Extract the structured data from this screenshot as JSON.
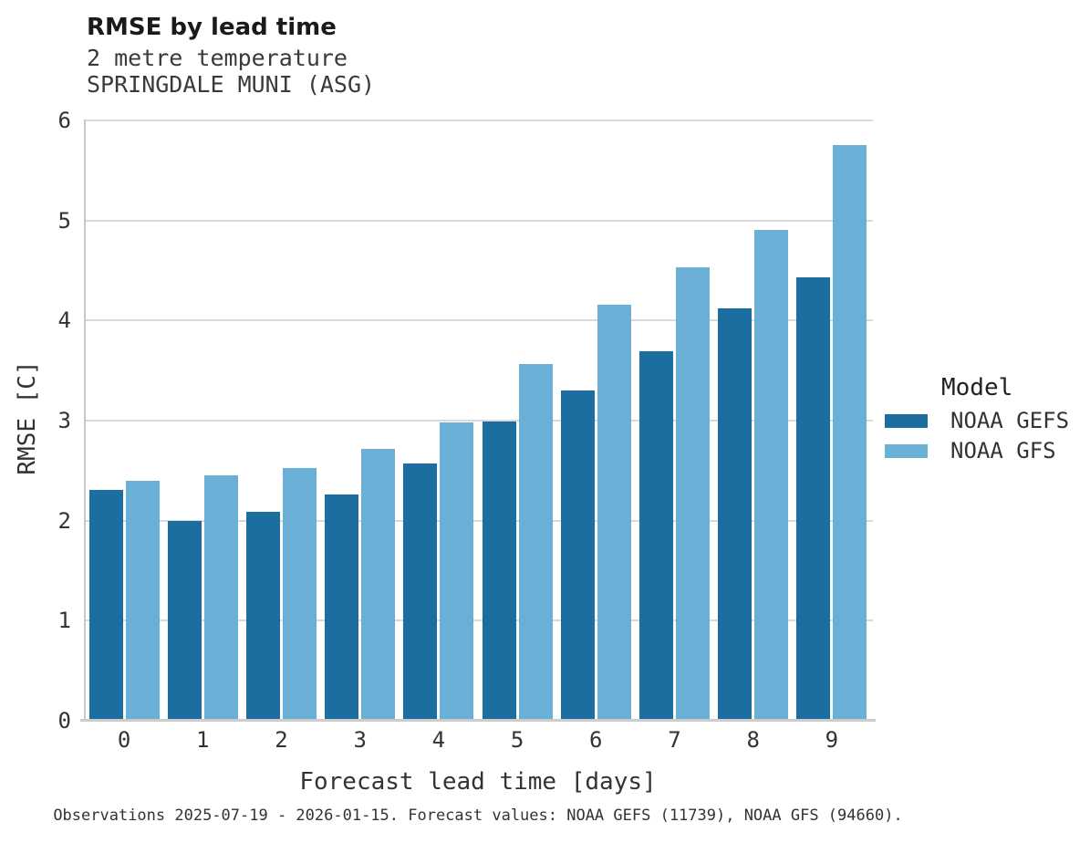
{
  "header": {
    "title": "RMSE by lead time",
    "subtitle_variable": "2 metre temperature",
    "subtitle_station": "SPRINGDALE MUNI (ASG)"
  },
  "legend": {
    "title": "Model"
  },
  "footer": {
    "caption": "Observations 2025-07-19 - 2026-01-15. Forecast values: NOAA GEFS (11739), NOAA GFS (94660)."
  },
  "chart_data": {
    "type": "bar",
    "title": "RMSE by lead time",
    "subtitle": [
      "2 metre temperature",
      "SPRINGDALE MUNI (ASG)"
    ],
    "categories": [
      0,
      1,
      2,
      3,
      4,
      5,
      6,
      7,
      8,
      9
    ],
    "series": [
      {
        "name": "NOAA GEFS",
        "color": "#1c6da0",
        "values": [
          2.31,
          2.0,
          2.09,
          2.26,
          2.57,
          2.99,
          3.3,
          3.69,
          4.12,
          4.43
        ]
      },
      {
        "name": "NOAA GFS",
        "color": "#69afd6",
        "values": [
          2.4,
          2.45,
          2.53,
          2.72,
          2.98,
          3.57,
          4.16,
          4.53,
          4.91,
          5.75
        ]
      }
    ],
    "xlabel": "Forecast lead time [days]",
    "ylabel": "RMSE [C]",
    "ylim": [
      0,
      6
    ],
    "yticks": [
      0,
      1,
      2,
      3,
      4,
      5,
      6
    ],
    "grid": true,
    "legend_title": "Model",
    "legend_position": "right",
    "grid_color": "#d9d9d9"
  }
}
